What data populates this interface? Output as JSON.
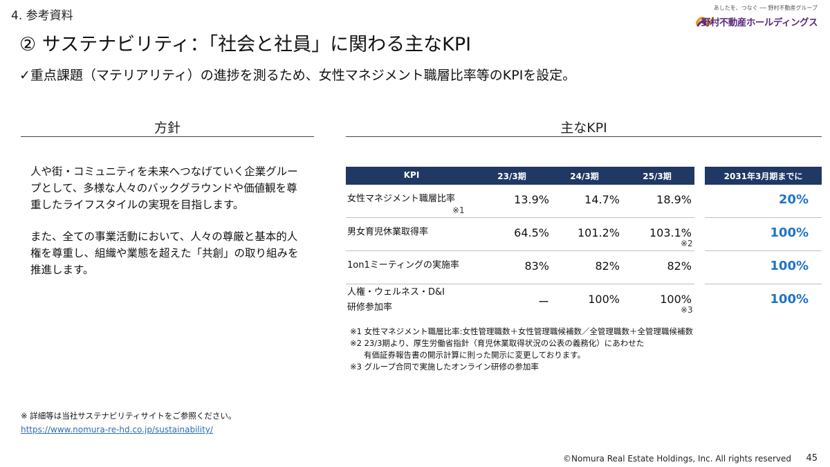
{
  "header": {
    "section": "4. 参考資料",
    "title": "② サステナビリティ：「社会と社員」に関わる主なKPI",
    "subtitle": "✓重点課題（マテリアリティ）の進捗を測るため、女性マネジメント職層比率等のKPIを設定。"
  },
  "logo": {
    "tagline": "あしたを、つなぐ ── 野村不動産グループ",
    "name": "野村不動産ホールディングス",
    "color": "#5a2b7a"
  },
  "policy": {
    "heading": "方針",
    "paragraphs": [
      "人や街・コミュニティを未来へつなげていく企業グループとして、多様な人々のバックグラウンドや価値観を尊重したライフスタイルの実現を目指します。",
      "また、全ての事業活動において、人々の尊厳と基本的人権を尊重し、組織や業態を超えた「共創」の取り組みを推進します。"
    ]
  },
  "kpi": {
    "heading": "主なKPI",
    "header_color": "#1f3864",
    "goal_color": "#1f74c4",
    "columns": [
      "KPI",
      "23/3期",
      "24/3期",
      "25/3期",
      "2031年3月期までに"
    ],
    "rows": [
      {
        "name": "女性マネジメント職層比率",
        "name_note": "※1",
        "v1": "13.9%",
        "v2": "14.7%",
        "v3": "18.9%",
        "v3_note": "",
        "goal": "20%"
      },
      {
        "name": "男女育児休業取得率",
        "name_note": "",
        "v1": "64.5%",
        "v2": "101.2%",
        "v3": "103.1%",
        "v3_note": "※2",
        "goal": "100%"
      },
      {
        "name": "1on1ミーティングの実施率",
        "name_note": "",
        "v1": "83%",
        "v2": "82%",
        "v3": "82%",
        "v3_note": "",
        "goal": "100%"
      },
      {
        "name": "人権・ウェルネス・D&I",
        "name_line2": "研修参加率",
        "name_note": "",
        "v1": "ー",
        "v2": "100%",
        "v3": "100%",
        "v3_note": "※3",
        "goal": "100%"
      }
    ]
  },
  "notes": [
    "※1 女性マネジメント職層比率:女性管理職数＋女性管理職候補数／全管理職数＋全管理職候補数",
    "※2 23/3期より、厚生労働省指針（育児休業取得状況の公表の義務化）にあわせた",
    "有価証券報告書の開示計算に則った開示に変更しております。",
    "※3 グループ合同で実施したオンライン研修の参加率"
  ],
  "reference": {
    "note": "※ 詳細等は当社サステナビリティサイトをご参照ください。",
    "link": "https://www.nomura-re-hd.co.jp/sustainability/"
  },
  "footer": {
    "copyright": "©Nomura Real Estate Holdings, Inc. All rights reserved",
    "page": "45"
  }
}
